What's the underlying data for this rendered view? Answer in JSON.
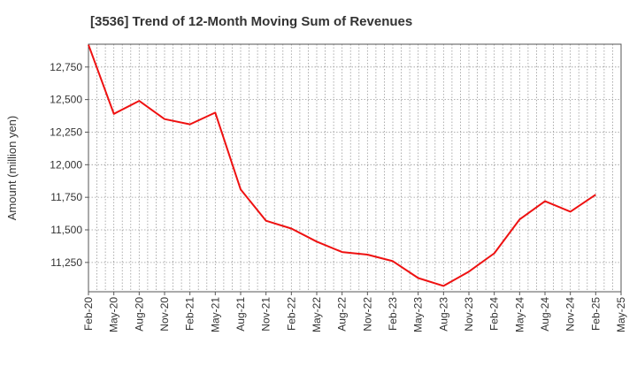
{
  "chart_data": {
    "type": "line",
    "title": "[3536]  Trend of 12-Month Moving Sum of Revenues",
    "xlabel": "",
    "ylabel": "Amount (million yen)",
    "ylim": [
      11025,
      12925
    ],
    "yticks": [
      11250,
      11500,
      11750,
      12000,
      12250,
      12500,
      12750
    ],
    "ytick_labels": [
      "11,250",
      "11,500",
      "11,750",
      "12,000",
      "12,250",
      "12,500",
      "12,750"
    ],
    "x_tick_labels": [
      "Feb-20",
      "May-20",
      "Aug-20",
      "Nov-20",
      "Feb-21",
      "May-21",
      "Aug-21",
      "Nov-21",
      "Feb-22",
      "May-22",
      "Aug-22",
      "Nov-22",
      "Feb-23",
      "May-23",
      "Aug-23",
      "Nov-23",
      "Feb-24",
      "May-24",
      "Aug-24",
      "Nov-24",
      "Feb-25",
      "May-25"
    ],
    "grid": true,
    "legend": "none",
    "series": [
      {
        "color": "#ee1111",
        "points": [
          {
            "x": "Feb-20",
            "y": 12920
          },
          {
            "x": "May-20",
            "y": 12390
          },
          {
            "x": "Aug-20",
            "y": 12490
          },
          {
            "x": "Nov-20",
            "y": 12350
          },
          {
            "x": "Feb-21",
            "y": 12310
          },
          {
            "x": "May-21",
            "y": 12400
          },
          {
            "x": "Aug-21",
            "y": 11810
          },
          {
            "x": "Nov-21",
            "y": 11570
          },
          {
            "x": "Feb-22",
            "y": 11510
          },
          {
            "x": "May-22",
            "y": 11410
          },
          {
            "x": "Aug-22",
            "y": 11330
          },
          {
            "x": "Nov-22",
            "y": 11310
          },
          {
            "x": "Feb-23",
            "y": 11260
          },
          {
            "x": "May-23",
            "y": 11130
          },
          {
            "x": "Aug-23",
            "y": 11070
          },
          {
            "x": "Nov-23",
            "y": 11180
          },
          {
            "x": "Feb-24",
            "y": 11320
          },
          {
            "x": "May-24",
            "y": 11580
          },
          {
            "x": "Aug-24",
            "y": 11720
          },
          {
            "x": "Nov-24",
            "y": 11640
          },
          {
            "x": "Feb-25",
            "y": 11770
          }
        ]
      }
    ]
  }
}
